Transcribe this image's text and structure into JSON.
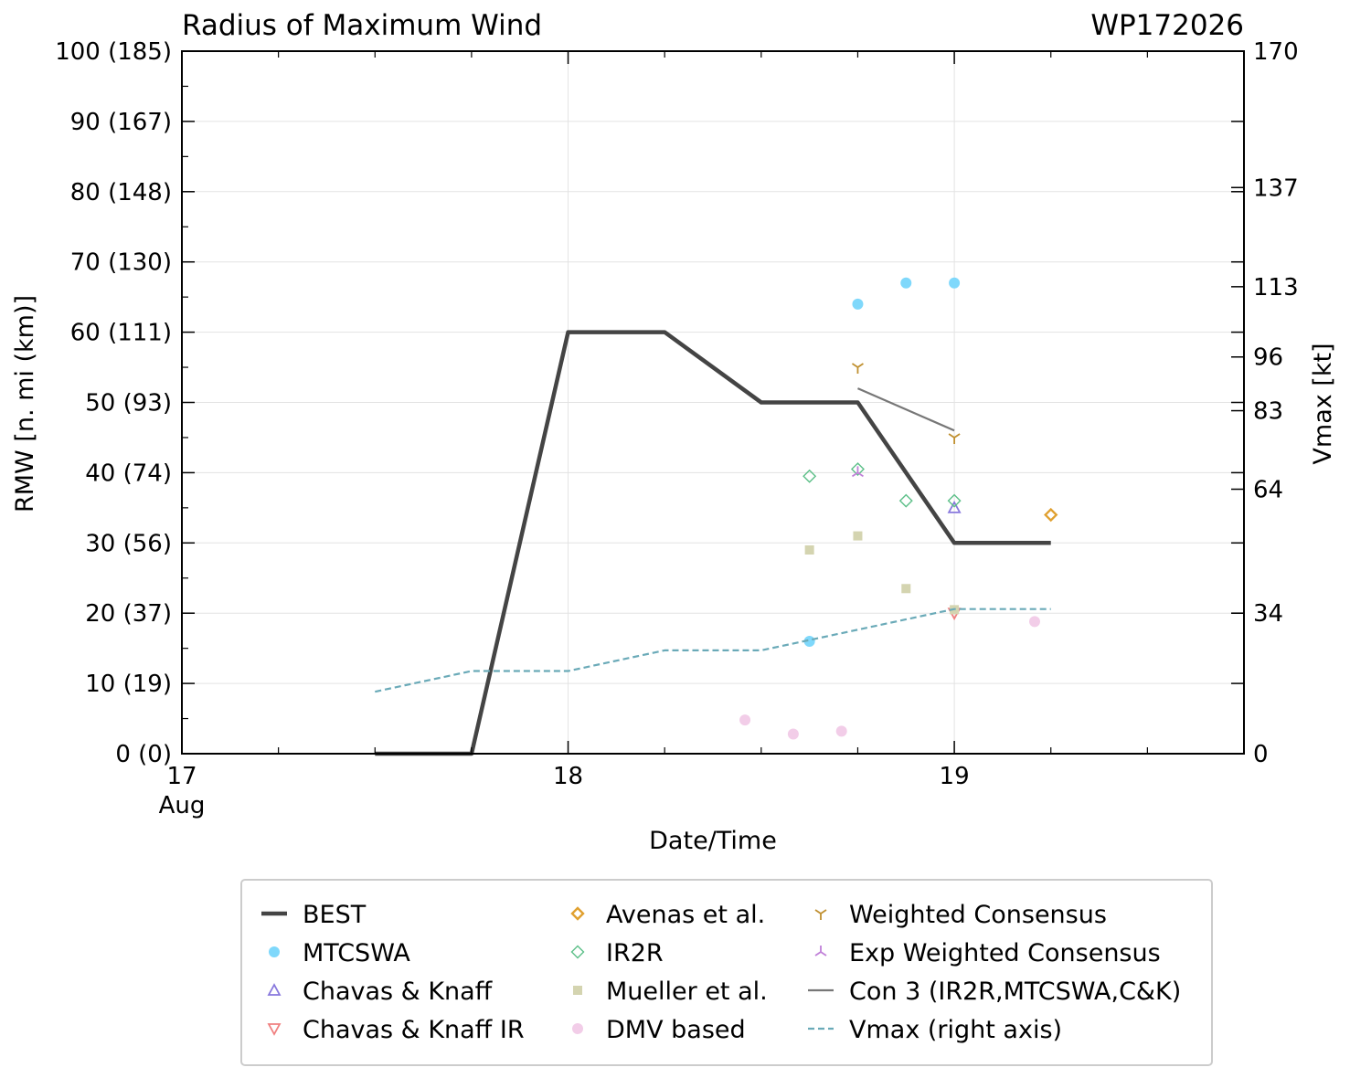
{
  "chart_data": {
    "type": "line",
    "title": "Radius of Maximum Wind",
    "title_right": "WP172026",
    "xlabel": "Date/Time",
    "ylabel": "RMW [n. mi (km)]",
    "ylabel_right": "Vmax [kt]",
    "xlim": [
      17.0,
      19.75
    ],
    "ylim": [
      0,
      100
    ],
    "grid": true,
    "legend_position": "below",
    "x_ticks": [
      {
        "value": 17,
        "label": "17",
        "sublabel": "Aug"
      },
      {
        "value": 18,
        "label": "18",
        "sublabel": ""
      },
      {
        "value": 19,
        "label": "19",
        "sublabel": ""
      }
    ],
    "x_minor_ticks": [
      17.25,
      17.5,
      17.75,
      18.25,
      18.5,
      18.75,
      19.25,
      19.5
    ],
    "y_ticks": [
      {
        "value": 0,
        "label": "0 (0)"
      },
      {
        "value": 10,
        "label": "10 (19)"
      },
      {
        "value": 20,
        "label": "20 (37)"
      },
      {
        "value": 30,
        "label": "30 (56)"
      },
      {
        "value": 40,
        "label": "40 (74)"
      },
      {
        "value": 50,
        "label": "50 (93)"
      },
      {
        "value": 60,
        "label": "60 (111)"
      },
      {
        "value": 70,
        "label": "70 (130)"
      },
      {
        "value": 80,
        "label": "80 (148)"
      },
      {
        "value": 90,
        "label": "90 (167)"
      },
      {
        "value": 100,
        "label": "100 (185)"
      }
    ],
    "y_minor_ticks": [
      5,
      15,
      25,
      35,
      45,
      55,
      65,
      75,
      85,
      95
    ],
    "right_axis": {
      "ylim": [
        0,
        170
      ],
      "ticks": [
        {
          "value": 0,
          "label": "0"
        },
        {
          "value": 34,
          "label": "34"
        },
        {
          "value": 64,
          "label": "64"
        },
        {
          "value": 83,
          "label": "83"
        },
        {
          "value": 96,
          "label": "96"
        },
        {
          "value": 113,
          "label": "113"
        },
        {
          "value": 137,
          "label": "137"
        },
        {
          "value": 170,
          "label": "170"
        }
      ]
    },
    "series": [
      {
        "name": "BEST",
        "kind": "line",
        "color": "#444444",
        "style": "solid",
        "x": [
          17.5,
          17.75,
          18.0,
          18.25,
          18.5,
          18.75,
          19.0,
          19.25
        ],
        "y": [
          0,
          0,
          60,
          60,
          50,
          50,
          30,
          30
        ]
      },
      {
        "name": "MTCSWA",
        "kind": "marker",
        "marker": "circle",
        "color": "#7fd8fb",
        "x": [
          18.625,
          18.75,
          18.875,
          19.0
        ],
        "y": [
          16,
          64,
          67,
          67
        ]
      },
      {
        "name": "Chavas & Knaff",
        "kind": "marker",
        "marker": "triangle-up",
        "color": "#8878dd",
        "x": [
          19.0
        ],
        "y": [
          35
        ]
      },
      {
        "name": "Chavas & Knaff IR",
        "kind": "marker",
        "marker": "triangle-down",
        "color": "#f08080",
        "x": [
          19.0
        ],
        "y": [
          20
        ]
      },
      {
        "name": "Avenas et al.",
        "kind": "marker",
        "marker": "diamond",
        "color": "#e0a030",
        "x": [
          19.25
        ],
        "y": [
          34
        ]
      },
      {
        "name": "IR2R",
        "kind": "marker",
        "marker": "diamond-thin",
        "color": "#5cbf88",
        "x": [
          18.625,
          18.75,
          18.875,
          19.0
        ],
        "y": [
          39.5,
          40.5,
          36,
          36
        ]
      },
      {
        "name": "Mueller et al.",
        "kind": "marker",
        "marker": "square",
        "color": "#d4d4b0",
        "x": [
          18.625,
          18.75,
          18.875,
          19.0
        ],
        "y": [
          29,
          31,
          23.5,
          20.5
        ]
      },
      {
        "name": "DMV based",
        "kind": "marker",
        "marker": "circle",
        "color": "#f2cde8",
        "x": [
          18.458,
          18.583,
          18.708,
          19.208
        ],
        "y": [
          4.8,
          2.8,
          3.2,
          18.8
        ]
      },
      {
        "name": "Weighted Consensus",
        "kind": "marker",
        "marker": "tri-down",
        "color": "#c09030",
        "x": [
          18.75,
          19.0
        ],
        "y": [
          55,
          45
        ]
      },
      {
        "name": "Exp Weighted Consensus",
        "kind": "marker",
        "marker": "tri-up",
        "color": "#c080d8",
        "x": [
          18.75
        ],
        "y": [
          40
        ]
      },
      {
        "name": "Con 3 (IR2R,MTCSWA,C&K)",
        "kind": "line",
        "color": "#777777",
        "style": "solid",
        "x": [
          18.75,
          19.0
        ],
        "y": [
          52,
          46
        ]
      },
      {
        "name": "Vmax (right axis)",
        "kind": "line",
        "color": "#6aaab8",
        "style": "dashed",
        "axis": "right",
        "x": [
          17.5,
          17.75,
          18.0,
          18.25,
          18.5,
          18.75,
          19.0,
          19.25
        ],
        "y": [
          15,
          20,
          20,
          25,
          25,
          30,
          35,
          35
        ]
      }
    ]
  }
}
